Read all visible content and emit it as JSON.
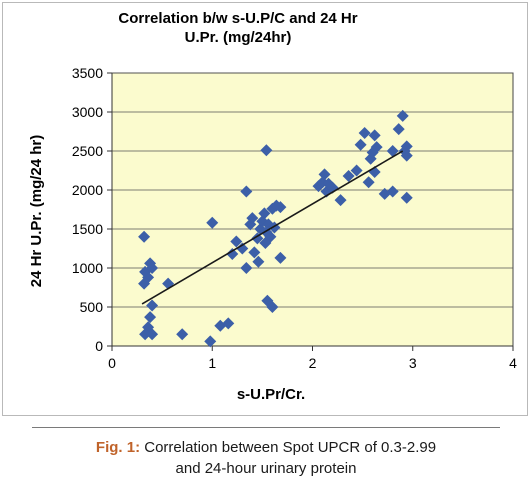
{
  "chart_data": {
    "type": "scatter",
    "title": [
      "Correlation b/w s-U.P/C and 24 Hr",
      "U.Pr. (mg/24hr)"
    ],
    "xlabel": "s-U.Pr/Cr.",
    "ylabel": "24 Hr U.Pr. (mg/24 hr)",
    "xlim": [
      0,
      4
    ],
    "ylim": [
      0,
      3500
    ],
    "xticks": [
      0,
      1,
      2,
      3,
      4
    ],
    "yticks": [
      0,
      500,
      1000,
      1500,
      2000,
      2500,
      3000,
      3500
    ],
    "plot_background": "#fbfbce",
    "marker_color": "#3c5fa8",
    "trendline": {
      "x": [
        0.3,
        2.9
      ],
      "y": [
        540,
        2500
      ],
      "color": "#1a1a1a"
    },
    "points": [
      {
        "x": 0.32,
        "y": 1400
      },
      {
        "x": 0.32,
        "y": 800
      },
      {
        "x": 0.33,
        "y": 950
      },
      {
        "x": 0.36,
        "y": 880
      },
      {
        "x": 0.38,
        "y": 1060
      },
      {
        "x": 0.4,
        "y": 1000
      },
      {
        "x": 0.4,
        "y": 520
      },
      {
        "x": 0.38,
        "y": 370
      },
      {
        "x": 0.36,
        "y": 240
      },
      {
        "x": 0.33,
        "y": 150
      },
      {
        "x": 0.4,
        "y": 150
      },
      {
        "x": 0.56,
        "y": 800
      },
      {
        "x": 0.7,
        "y": 150
      },
      {
        "x": 0.98,
        "y": 60
      },
      {
        "x": 1.0,
        "y": 1580
      },
      {
        "x": 1.08,
        "y": 260
      },
      {
        "x": 1.16,
        "y": 290
      },
      {
        "x": 1.2,
        "y": 1180
      },
      {
        "x": 1.24,
        "y": 1340
      },
      {
        "x": 1.3,
        "y": 1250
      },
      {
        "x": 1.34,
        "y": 1980
      },
      {
        "x": 1.34,
        "y": 1000
      },
      {
        "x": 1.38,
        "y": 1560
      },
      {
        "x": 1.4,
        "y": 1640
      },
      {
        "x": 1.42,
        "y": 1200
      },
      {
        "x": 1.45,
        "y": 1380
      },
      {
        "x": 1.46,
        "y": 1080
      },
      {
        "x": 1.48,
        "y": 1500
      },
      {
        "x": 1.5,
        "y": 1600
      },
      {
        "x": 1.52,
        "y": 1700
      },
      {
        "x": 1.53,
        "y": 1320
      },
      {
        "x": 1.54,
        "y": 1460
      },
      {
        "x": 1.54,
        "y": 2510
      },
      {
        "x": 1.55,
        "y": 580
      },
      {
        "x": 1.56,
        "y": 1560
      },
      {
        "x": 1.58,
        "y": 1400
      },
      {
        "x": 1.6,
        "y": 500
      },
      {
        "x": 1.6,
        "y": 1760
      },
      {
        "x": 1.62,
        "y": 1520
      },
      {
        "x": 1.64,
        "y": 1800
      },
      {
        "x": 1.68,
        "y": 1780
      },
      {
        "x": 1.68,
        "y": 1130
      },
      {
        "x": 2.06,
        "y": 2050
      },
      {
        "x": 2.1,
        "y": 2100
      },
      {
        "x": 2.12,
        "y": 2200
      },
      {
        "x": 2.14,
        "y": 1980
      },
      {
        "x": 2.16,
        "y": 2080
      },
      {
        "x": 2.2,
        "y": 2030
      },
      {
        "x": 2.28,
        "y": 1870
      },
      {
        "x": 2.36,
        "y": 2180
      },
      {
        "x": 2.44,
        "y": 2250
      },
      {
        "x": 2.48,
        "y": 2580
      },
      {
        "x": 2.52,
        "y": 2730
      },
      {
        "x": 2.56,
        "y": 2100
      },
      {
        "x": 2.58,
        "y": 2400
      },
      {
        "x": 2.6,
        "y": 2480
      },
      {
        "x": 2.62,
        "y": 2700
      },
      {
        "x": 2.62,
        "y": 2230
      },
      {
        "x": 2.64,
        "y": 2550
      },
      {
        "x": 2.72,
        "y": 1950
      },
      {
        "x": 2.8,
        "y": 1980
      },
      {
        "x": 2.8,
        "y": 2500
      },
      {
        "x": 2.86,
        "y": 2780
      },
      {
        "x": 2.9,
        "y": 2950
      },
      {
        "x": 2.92,
        "y": 2500
      },
      {
        "x": 2.94,
        "y": 2560
      },
      {
        "x": 2.94,
        "y": 2440
      },
      {
        "x": 2.94,
        "y": 1900
      }
    ]
  },
  "caption": {
    "label": "Fig. 1:",
    "line1": "Correlation between Spot UPCR of 0.3-2.99",
    "line2": "and 24-hour urinary protein"
  }
}
